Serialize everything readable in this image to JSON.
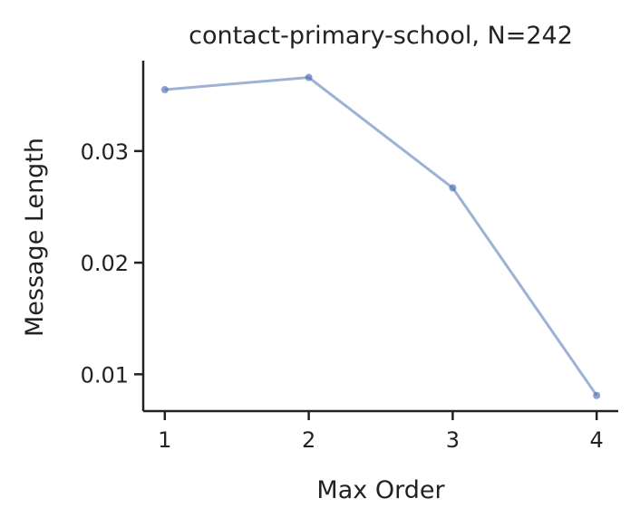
{
  "chart_data": {
    "type": "line",
    "title": "contact-primary-school, N=242",
    "xlabel": "Max Order",
    "ylabel": "Message Length",
    "x": [
      1,
      2,
      3,
      4
    ],
    "x_tick_labels": [
      "1",
      "2",
      "3",
      "4"
    ],
    "y_ticks": [
      0.01,
      0.02,
      0.03
    ],
    "y_tick_labels": [
      "0.01",
      "0.02",
      "0.03"
    ],
    "xlim": [
      0.85,
      4.15
    ],
    "ylim": [
      0.0067,
      0.0381
    ],
    "grid": false,
    "legend": "none",
    "series": [
      {
        "values": [
          0.0355,
          0.0366,
          0.0267,
          0.0081
        ],
        "color": "#4c72b0"
      }
    ]
  }
}
